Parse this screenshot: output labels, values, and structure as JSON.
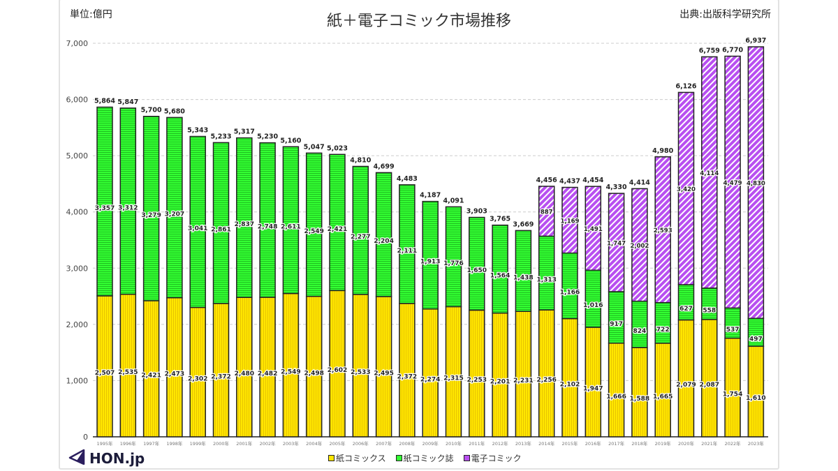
{
  "header": {
    "unit_label": "単位:億円",
    "title": "紙＋電子コミック市場推移",
    "source": "出典:出版科学研究所"
  },
  "logo": {
    "icon": "paper-plane-triangle-icon",
    "text": "HON.jp"
  },
  "colors": {
    "paper_comics": "#ffe600",
    "paper_comics_stripe": "#e8c400",
    "paper_magazines": "#33ff33",
    "paper_magazines_stripe": "#1fbf1f",
    "digital_comics": "#b84ff0",
    "digital_comics_stripe": "#ffffff",
    "grid": "#cccccc",
    "logo": "#2b1e5e"
  },
  "chart_data": {
    "type": "bar",
    "stacked": true,
    "title": "紙＋電子コミック市場推移",
    "xlabel": "",
    "ylabel": "単位:億円",
    "ylim": [
      0,
      7000
    ],
    "yticks": [
      0,
      1000,
      2000,
      3000,
      4000,
      5000,
      6000,
      7000
    ],
    "ytick_labels": [
      "0",
      "1,000",
      "2,000",
      "3,000",
      "4,000",
      "5,000",
      "6,000",
      "7,000"
    ],
    "grid": "horizontal-dashed",
    "legend_position": "bottom",
    "categories": [
      "1995年",
      "1996年",
      "1997年",
      "1998年",
      "1999年",
      "2000年",
      "2001年",
      "2002年",
      "2003年",
      "2004年",
      "2005年",
      "2006年",
      "2007年",
      "2008年",
      "2009年",
      "2010年",
      "2011年",
      "2012年",
      "2013年",
      "2014年",
      "2015年",
      "2016年",
      "2017年",
      "2018年",
      "2019年",
      "2020年",
      "2021年",
      "2022年",
      "2023年"
    ],
    "series": [
      {
        "name": "紙コミックス",
        "key": "paper_comics",
        "values": [
          2507,
          2535,
          2421,
          2473,
          2302,
          2372,
          2480,
          2482,
          2549,
          2498,
          2602,
          2533,
          2495,
          2372,
          2274,
          2315,
          2253,
          2201,
          2231,
          2256,
          2102,
          1947,
          1666,
          1588,
          1665,
          2079,
          2087,
          1754,
          1610
        ]
      },
      {
        "name": "紙コミック誌",
        "key": "paper_magazines",
        "values": [
          3357,
          3312,
          3279,
          3207,
          3041,
          2861,
          2837,
          2748,
          2611,
          2549,
          2421,
          2277,
          2204,
          2111,
          1913,
          1776,
          1650,
          1564,
          1438,
          1313,
          1166,
          1016,
          917,
          824,
          722,
          627,
          558,
          537,
          497
        ]
      },
      {
        "name": "電子コミック",
        "key": "digital_comics",
        "values": [
          null,
          null,
          null,
          null,
          null,
          null,
          null,
          null,
          null,
          null,
          null,
          null,
          null,
          null,
          null,
          null,
          null,
          null,
          null,
          887,
          1169,
          1491,
          1747,
          2002,
          2593,
          3420,
          4114,
          4479,
          4830
        ]
      }
    ],
    "totals": [
      5864,
      5847,
      5700,
      5680,
      5343,
      5233,
      5317,
      5230,
      5160,
      5047,
      5023,
      4810,
      4699,
      4483,
      4187,
      4091,
      3903,
      3765,
      3669,
      4456,
      4437,
      4454,
      4330,
      4414,
      4980,
      6126,
      6759,
      6770,
      6937
    ]
  }
}
